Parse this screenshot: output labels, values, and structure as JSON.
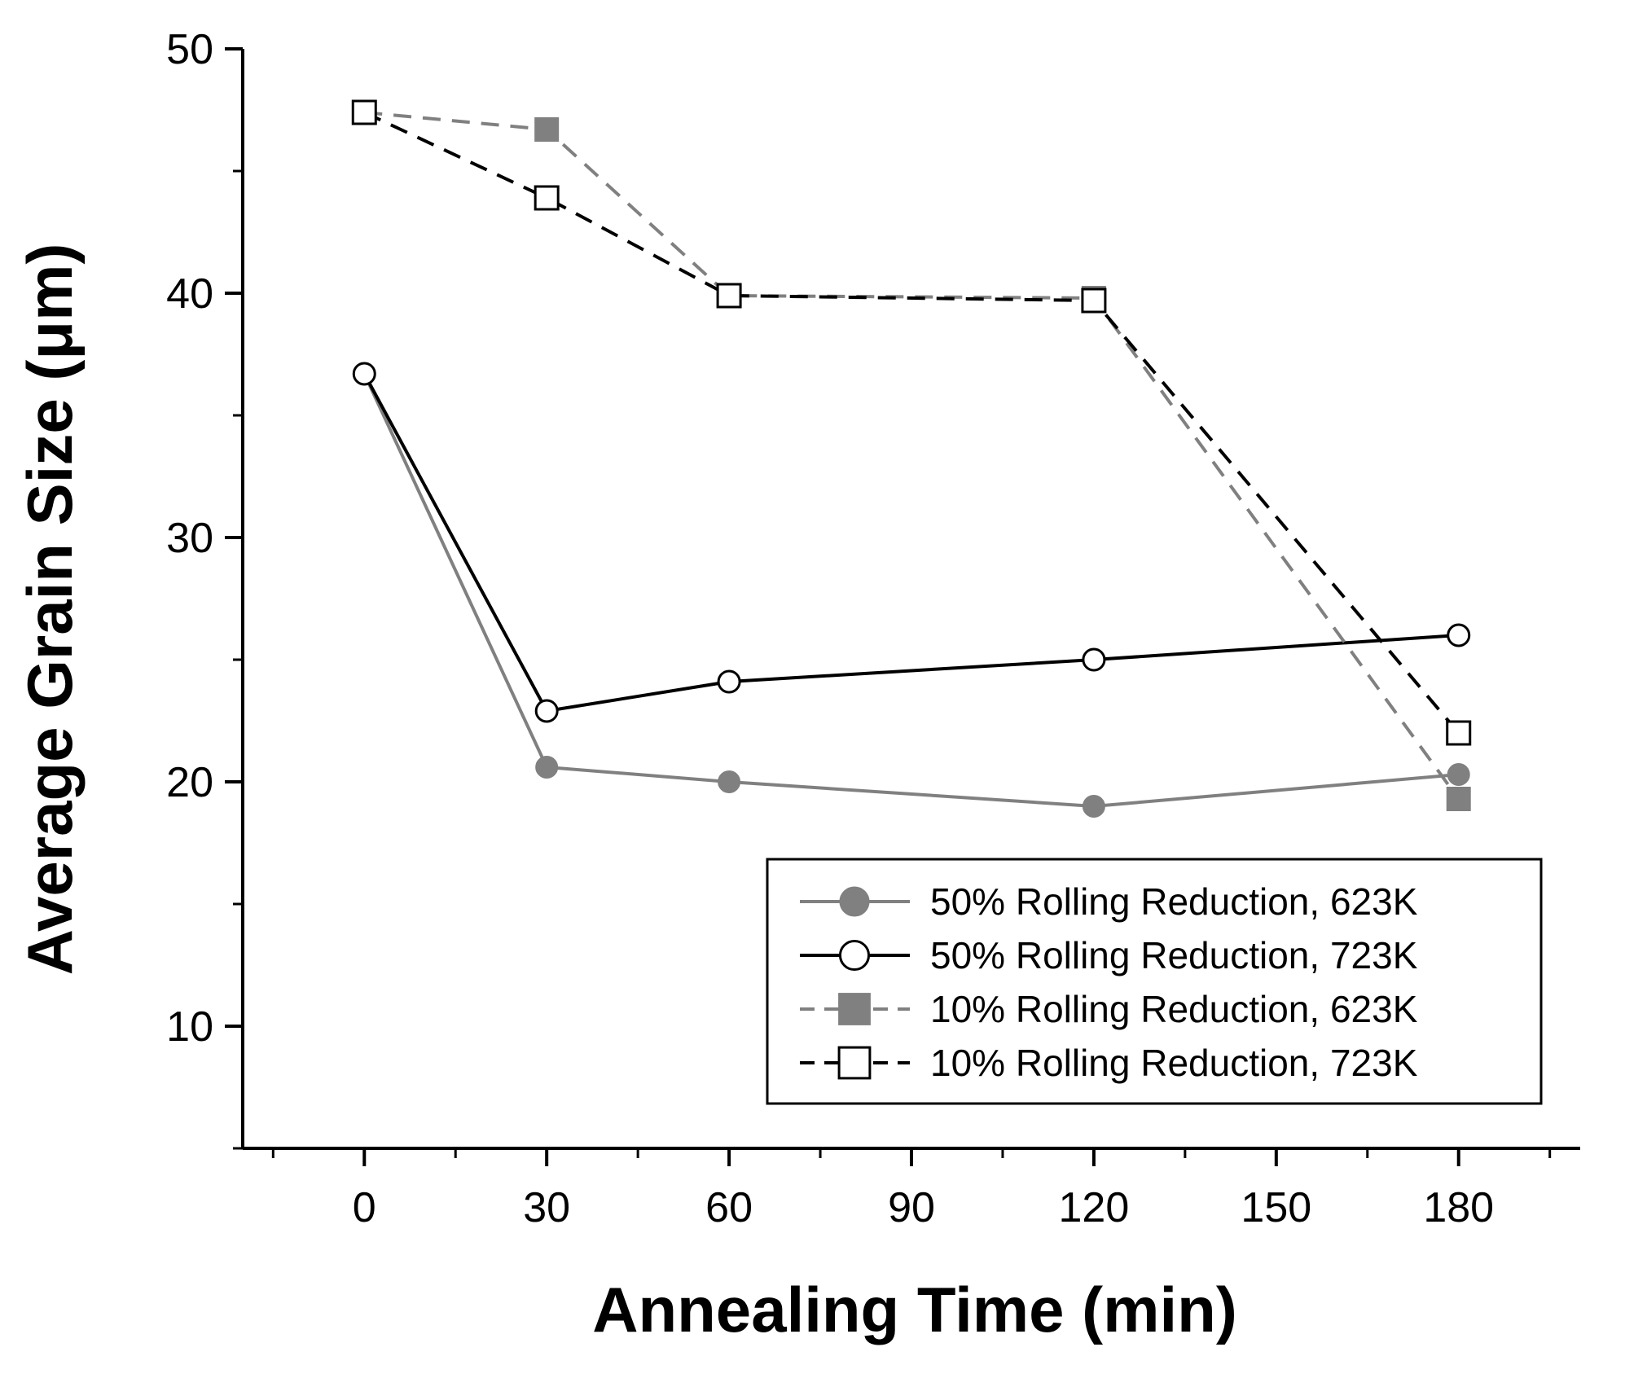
{
  "chart_data": {
    "type": "line",
    "title": "",
    "xlabel": "Annealing Time (min)",
    "ylabel": "Average Grain Size (μm)",
    "xlim": [
      -20,
      200
    ],
    "ylim": [
      5,
      50
    ],
    "xticks": [
      0,
      30,
      60,
      90,
      120,
      150,
      180
    ],
    "yticks": [
      10,
      20,
      30,
      40,
      50
    ],
    "grid": false,
    "legend_position": "bottom-right",
    "x": [
      0,
      30,
      60,
      120,
      180
    ],
    "series": [
      {
        "name": "50% Rolling Reduction, 623K",
        "values": [
          36.7,
          20.6,
          20.0,
          19.0,
          20.3
        ],
        "color": "#808080",
        "line_style": "solid",
        "marker": "filled-circle"
      },
      {
        "name": "50% Rolling Reduction, 723K",
        "values": [
          36.7,
          22.9,
          24.1,
          25.0,
          26.0
        ],
        "color": "#000000",
        "line_style": "solid",
        "marker": "open-circle"
      },
      {
        "name": "10% Rolling Reduction, 623K",
        "values": [
          47.4,
          46.7,
          39.9,
          39.8,
          19.3
        ],
        "color": "#808080",
        "line_style": "dashed",
        "marker": "filled-square"
      },
      {
        "name": "10% Rolling Reduction, 723K",
        "values": [
          47.4,
          43.9,
          39.9,
          39.7,
          22.0
        ],
        "color": "#000000",
        "line_style": "dashed",
        "marker": "open-square"
      }
    ]
  }
}
